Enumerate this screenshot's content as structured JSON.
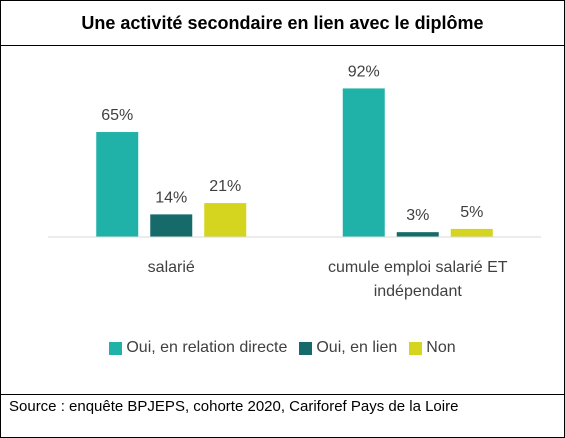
{
  "chart_data": {
    "type": "bar",
    "title": "Une activité secondaire en lien avec le diplôme",
    "categories": [
      "salarié",
      "cumule emploi salarié ET indépendant"
    ],
    "series": [
      {
        "name": "Oui, en relation directe",
        "color": "#20b1a9",
        "values": [
          65,
          92
        ],
        "value_labels": [
          "65%",
          "92%"
        ]
      },
      {
        "name": "Oui, en lien",
        "color": "#166b6a",
        "values": [
          14,
          3
        ],
        "value_labels": [
          "14%",
          "3%"
        ]
      },
      {
        "name": "Non",
        "color": "#d5d51f",
        "values": [
          21,
          5
        ],
        "value_labels": [
          "21%",
          "5%"
        ]
      }
    ],
    "ylim": [
      0,
      100
    ],
    "source": "Source : enquête BPJEPS, cohorte 2020, Cariforef Pays de la Loire"
  }
}
